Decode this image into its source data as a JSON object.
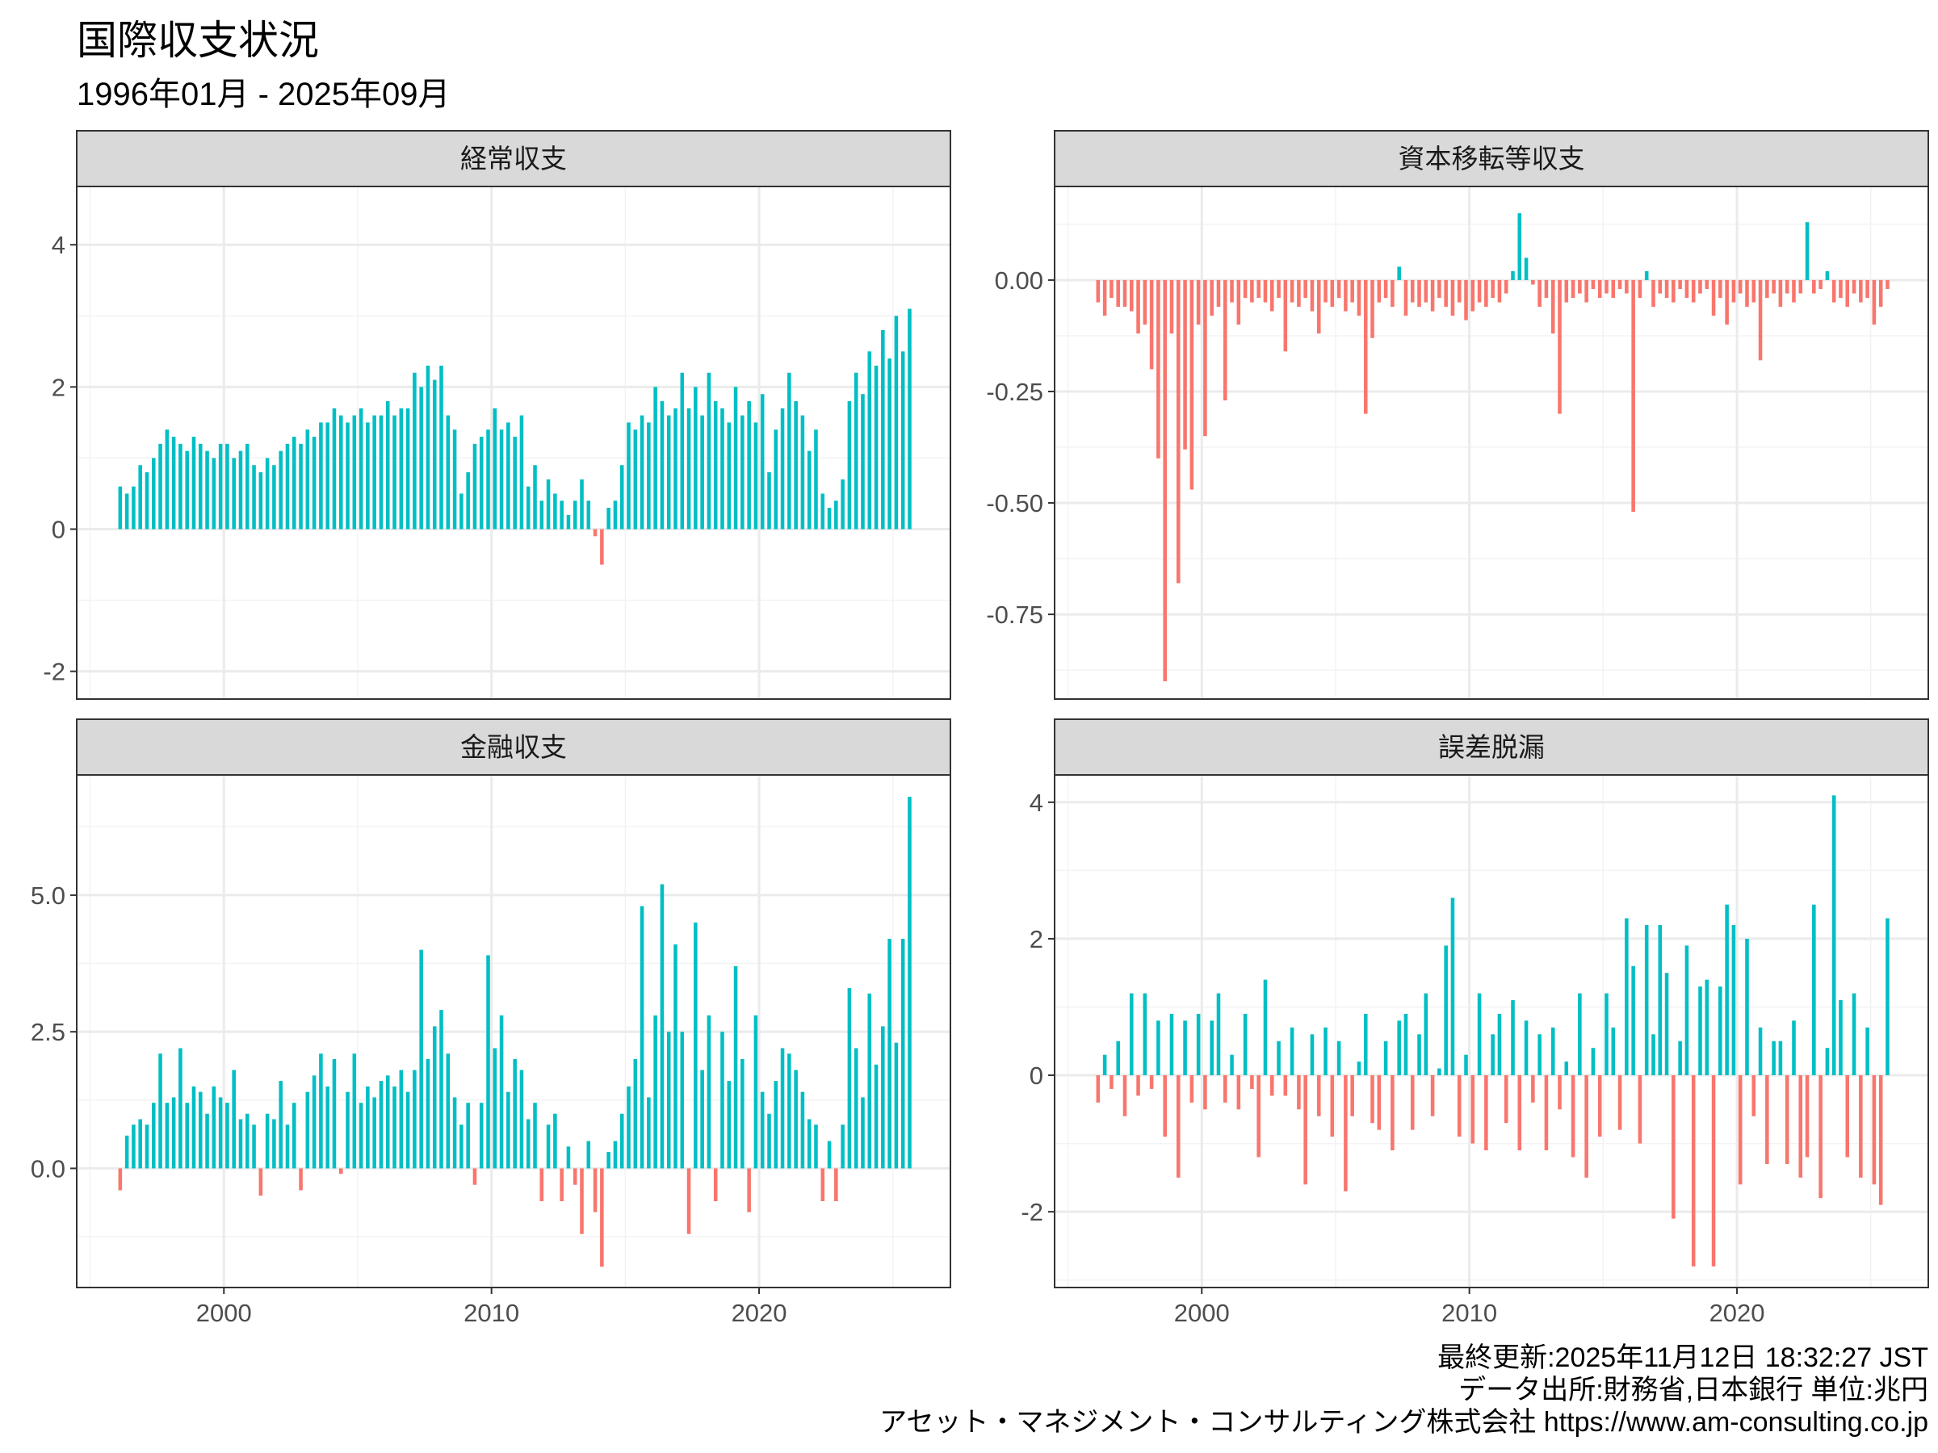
{
  "title": "国際収支状況",
  "subtitle": "1996年01月 - 2025年09月",
  "footer": {
    "updated": "最終更新:2025年11月12日 18:32:27 JST",
    "source": "データ出所:財務省,日本銀行 単位:兆円",
    "credit": "アセット・マネジメント・コンサルティング株式会社 https://www.am-consulting.co.jp"
  },
  "colors": {
    "positive": "#00BFC4",
    "negative": "#F8766D",
    "strip": "#D9D9D9",
    "grid": "#EBEBEB"
  },
  "chart_data": [
    {
      "type": "bar",
      "title": "経常収支",
      "frequency": "quarterly-approx",
      "start": "1996Q1",
      "ylim": [
        -2.39,
        4.82
      ],
      "yticks": [
        -2,
        0,
        2,
        4
      ],
      "ytick_labels": [
        "-2",
        "0",
        "2",
        "4"
      ],
      "xticks": [
        2000,
        2010,
        2020
      ],
      "xtick_labels": [
        "2000",
        "2010",
        "2020"
      ],
      "values": [
        0.6,
        0.5,
        0.6,
        0.9,
        0.8,
        1.0,
        1.2,
        1.4,
        1.3,
        1.2,
        1.1,
        1.3,
        1.2,
        1.1,
        1.0,
        1.2,
        1.2,
        1.0,
        1.1,
        1.2,
        0.9,
        0.8,
        1.0,
        0.9,
        1.1,
        1.2,
        1.3,
        1.2,
        1.4,
        1.3,
        1.5,
        1.5,
        1.7,
        1.6,
        1.5,
        1.6,
        1.7,
        1.5,
        1.6,
        1.6,
        1.8,
        1.6,
        1.7,
        1.7,
        2.2,
        2.0,
        2.3,
        2.1,
        2.3,
        1.6,
        1.4,
        0.5,
        0.8,
        1.2,
        1.3,
        1.4,
        1.7,
        1.4,
        1.5,
        1.3,
        1.6,
        0.6,
        0.9,
        0.4,
        0.7,
        0.5,
        0.4,
        0.2,
        0.4,
        0.7,
        0.4,
        -0.1,
        -0.5,
        0.3,
        0.4,
        0.9,
        1.5,
        1.4,
        1.6,
        1.5,
        2.0,
        1.8,
        1.6,
        1.7,
        2.2,
        1.7,
        2.0,
        1.6,
        2.2,
        1.8,
        1.7,
        1.5,
        2.0,
        1.6,
        1.8,
        1.5,
        1.9,
        0.8,
        1.4,
        1.7,
        2.2,
        1.8,
        1.6,
        1.1,
        1.4,
        0.5,
        0.3,
        0.4,
        0.7,
        1.8,
        2.2,
        1.9,
        2.5,
        2.3,
        2.8,
        2.4,
        3.0,
        2.5,
        3.1
      ]
    },
    {
      "type": "bar",
      "title": "資本移転等収支",
      "frequency": "quarterly-approx",
      "start": "1996Q1",
      "ylim": [
        -0.94,
        0.21
      ],
      "yticks": [
        -0.75,
        -0.5,
        -0.25,
        0
      ],
      "ytick_labels": [
        "-0.75",
        "-0.50",
        "-0.25",
        "0.00"
      ],
      "xticks": [
        2000,
        2010,
        2020
      ],
      "xtick_labels": [
        "2000",
        "2010",
        "2020"
      ],
      "values": [
        -0.05,
        -0.08,
        -0.04,
        -0.06,
        -0.06,
        -0.07,
        -0.12,
        -0.1,
        -0.2,
        -0.4,
        -0.9,
        -0.12,
        -0.68,
        -0.38,
        -0.47,
        -0.1,
        -0.35,
        -0.08,
        -0.06,
        -0.27,
        -0.05,
        -0.1,
        -0.04,
        -0.05,
        -0.04,
        -0.05,
        -0.07,
        -0.04,
        -0.16,
        -0.05,
        -0.06,
        -0.04,
        -0.07,
        -0.12,
        -0.05,
        -0.06,
        -0.04,
        -0.07,
        -0.05,
        -0.08,
        -0.3,
        -0.13,
        -0.05,
        -0.04,
        -0.06,
        0.03,
        -0.08,
        -0.05,
        -0.06,
        -0.05,
        -0.07,
        -0.04,
        -0.06,
        -0.08,
        -0.05,
        -0.09,
        -0.07,
        -0.05,
        -0.06,
        -0.04,
        -0.05,
        -0.03,
        0.02,
        0.15,
        0.05,
        -0.01,
        -0.06,
        -0.04,
        -0.12,
        -0.3,
        -0.05,
        -0.04,
        -0.03,
        -0.05,
        -0.02,
        -0.04,
        -0.03,
        -0.04,
        -0.02,
        -0.03,
        -0.52,
        -0.04,
        0.02,
        -0.06,
        -0.03,
        -0.04,
        -0.05,
        -0.02,
        -0.04,
        -0.05,
        -0.03,
        -0.02,
        -0.08,
        -0.04,
        -0.1,
        -0.05,
        -0.03,
        -0.06,
        -0.05,
        -0.18,
        -0.04,
        -0.03,
        -0.06,
        -0.03,
        -0.05,
        -0.03,
        0.13,
        -0.03,
        -0.02,
        0.02,
        -0.05,
        -0.04,
        -0.06,
        -0.03,
        -0.05,
        -0.04,
        -0.1,
        -0.06,
        -0.02
      ]
    },
    {
      "type": "bar",
      "title": "金融収支",
      "frequency": "quarterly-approx",
      "start": "1996Q1",
      "ylim": [
        -2.18,
        7.2
      ],
      "yticks": [
        0,
        2.5,
        5
      ],
      "ytick_labels": [
        "0.0",
        "2.5",
        "5.0"
      ],
      "xticks": [
        2000,
        2010,
        2020
      ],
      "xtick_labels": [
        "2000",
        "2010",
        "2020"
      ],
      "values": [
        -0.4,
        0.6,
        0.8,
        0.9,
        0.8,
        1.2,
        2.1,
        1.2,
        1.3,
        2.2,
        1.2,
        1.5,
        1.4,
        1.0,
        1.5,
        1.3,
        1.2,
        1.8,
        0.9,
        1.0,
        0.8,
        -0.5,
        1.0,
        0.9,
        1.6,
        0.8,
        1.2,
        -0.4,
        1.4,
        1.7,
        2.1,
        1.5,
        2.0,
        -0.1,
        1.4,
        2.1,
        1.2,
        1.5,
        1.3,
        1.6,
        1.7,
        1.5,
        1.8,
        1.4,
        1.8,
        4.0,
        2.0,
        2.6,
        2.9,
        2.1,
        1.3,
        0.8,
        1.2,
        -0.3,
        1.2,
        3.9,
        2.2,
        2.8,
        1.4,
        2.0,
        1.8,
        0.9,
        1.2,
        -0.6,
        0.8,
        1.0,
        -0.6,
        0.4,
        -0.3,
        -1.2,
        0.5,
        -0.8,
        -1.8,
        0.3,
        0.5,
        1.0,
        1.5,
        2.0,
        4.8,
        1.3,
        2.8,
        5.2,
        2.5,
        4.1,
        2.5,
        -1.2,
        4.5,
        1.8,
        2.8,
        -0.6,
        2.5,
        1.6,
        3.7,
        2.0,
        -0.8,
        2.8,
        1.4,
        1.0,
        1.6,
        2.2,
        2.1,
        1.8,
        1.4,
        0.9,
        0.8,
        -0.6,
        0.5,
        -0.6,
        0.8,
        3.3,
        2.2,
        1.3,
        3.2,
        1.9,
        2.6,
        4.2,
        2.3,
        4.2,
        6.8
      ]
    },
    {
      "type": "bar",
      "title": "誤差脱漏",
      "frequency": "quarterly-approx",
      "start": "1996Q1",
      "ylim": [
        -3.11,
        4.4
      ],
      "yticks": [
        -2,
        0,
        2,
        4
      ],
      "ytick_labels": [
        "-2",
        "0",
        "2",
        "4"
      ],
      "xticks": [
        2000,
        2010,
        2020
      ],
      "xtick_labels": [
        "2000",
        "2010",
        "2020"
      ],
      "values": [
        -0.4,
        0.3,
        -0.2,
        0.5,
        -0.6,
        1.2,
        -0.3,
        1.2,
        -0.2,
        0.8,
        -0.9,
        0.9,
        -1.5,
        0.8,
        -0.4,
        0.9,
        -0.5,
        0.8,
        1.2,
        -0.4,
        0.3,
        -0.5,
        0.9,
        -0.2,
        -1.2,
        1.4,
        -0.3,
        0.5,
        -0.3,
        0.7,
        -0.5,
        -1.6,
        0.6,
        -0.6,
        0.7,
        -0.9,
        0.5,
        -1.7,
        -0.6,
        0.2,
        0.9,
        -0.7,
        -0.8,
        0.5,
        -1.1,
        0.8,
        0.9,
        -0.8,
        0.6,
        1.2,
        -0.6,
        0.1,
        1.9,
        2.6,
        -0.9,
        0.3,
        -1.0,
        1.2,
        -1.1,
        0.6,
        0.9,
        -0.7,
        1.1,
        -1.1,
        0.8,
        -0.4,
        0.6,
        -1.1,
        0.7,
        -0.5,
        0.2,
        -1.2,
        1.2,
        -1.5,
        0.4,
        -0.9,
        1.2,
        0.7,
        -0.8,
        2.3,
        1.6,
        -1.0,
        2.2,
        0.6,
        2.2,
        1.5,
        -2.1,
        0.5,
        1.9,
        -2.8,
        1.3,
        1.4,
        -2.8,
        1.3,
        2.5,
        2.2,
        -1.6,
        2.0,
        -0.6,
        0.7,
        -1.3,
        0.5,
        0.5,
        -1.3,
        0.8,
        -1.5,
        -1.2,
        2.5,
        -1.8,
        0.4,
        4.1,
        1.1,
        -1.2,
        1.2,
        -1.5,
        0.7,
        -1.6,
        -1.9,
        2.3
      ]
    }
  ]
}
